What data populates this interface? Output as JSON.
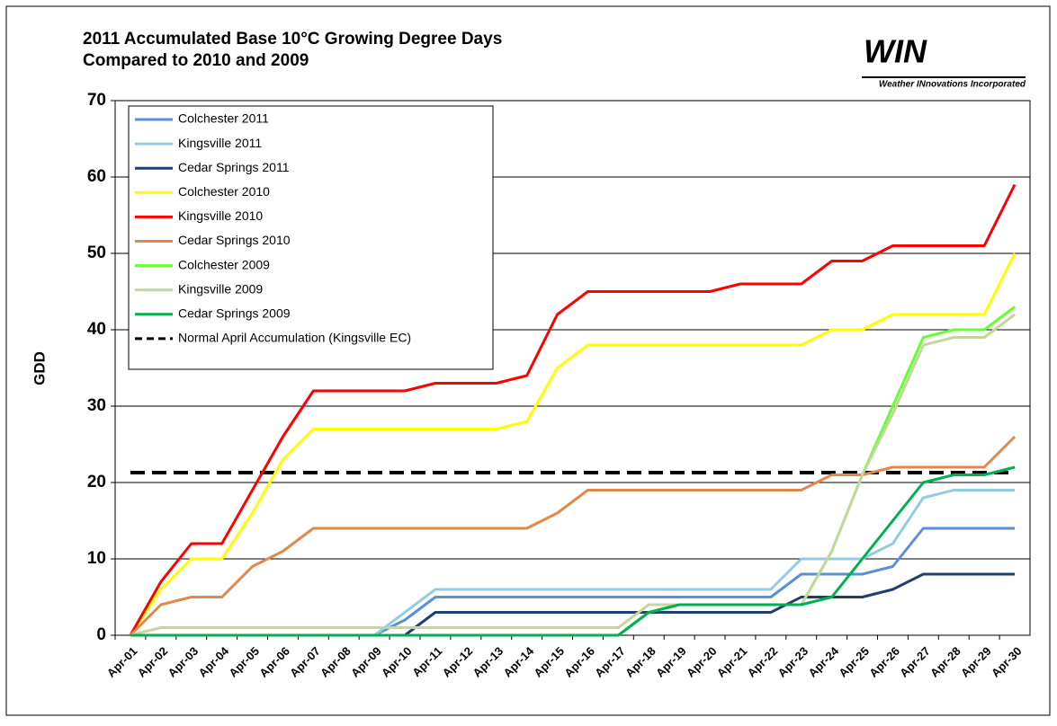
{
  "chart_data": {
    "type": "line",
    "title": "2011 Accumulated Base 10°C Growing Degree Days",
    "subtitle": "Compared to 2010 and 2009",
    "logo_text": "WIN",
    "logo_subtext": "Weather INnovations Incorporated",
    "y_label": "GDD",
    "categories": [
      "Apr-01",
      "Apr-02",
      "Apr-03",
      "Apr-04",
      "Apr-05",
      "Apr-06",
      "Apr-07",
      "Apr-08",
      "Apr-09",
      "Apr-10",
      "Apr-11",
      "Apr-12",
      "Apr-13",
      "Apr-14",
      "Apr-15",
      "Apr-16",
      "Apr-17",
      "Apr-18",
      "Apr-19",
      "Apr-20",
      "Apr-21",
      "Apr-22",
      "Apr-23",
      "Apr-24",
      "Apr-25",
      "Apr-26",
      "Apr-27",
      "Apr-28",
      "Apr-29",
      "Apr-30"
    ],
    "ylim": [
      0,
      70
    ],
    "yticks": [
      0,
      10,
      20,
      30,
      40,
      50,
      60,
      70
    ],
    "grid": true,
    "legend": "upper left",
    "series": [
      {
        "name": "Colchester 2011",
        "color": "#5b8fd6",
        "values": [
          0,
          0,
          0,
          0,
          0,
          0,
          0,
          0,
          0,
          2,
          5,
          5,
          5,
          5,
          5,
          5,
          5,
          5,
          5,
          5,
          5,
          5,
          8,
          8,
          8,
          9,
          14,
          14,
          14,
          14
        ]
      },
      {
        "name": "Kingsville 2011",
        "color": "#93cddd",
        "values": [
          0,
          0,
          0,
          0,
          0,
          0,
          0,
          0,
          0,
          3,
          6,
          6,
          6,
          6,
          6,
          6,
          6,
          6,
          6,
          6,
          6,
          6,
          10,
          10,
          10,
          12,
          18,
          19,
          19,
          19
        ]
      },
      {
        "name": "Cedar Springs 2011",
        "color": "#1f3f6e",
        "values": [
          0,
          0,
          0,
          0,
          0,
          0,
          0,
          0,
          0,
          0,
          3,
          3,
          3,
          3,
          3,
          3,
          3,
          3,
          3,
          3,
          3,
          3,
          5,
          5,
          5,
          6,
          8,
          8,
          8,
          8
        ]
      },
      {
        "name": "Colchester 2010",
        "color": "#ffff00",
        "values": [
          0,
          6,
          10,
          10,
          16,
          23,
          27,
          27,
          27,
          27,
          27,
          27,
          27,
          28,
          35,
          38,
          38,
          38,
          38,
          38,
          38,
          38,
          38,
          40,
          40,
          42,
          42,
          42,
          42,
          50
        ]
      },
      {
        "name": "Kingsville 2010",
        "color": "#ff0000",
        "values": [
          0,
          7,
          12,
          12,
          19,
          26,
          32,
          32,
          32,
          32,
          33,
          33,
          33,
          34,
          42,
          45,
          45,
          45,
          45,
          45,
          46,
          46,
          46,
          49,
          49,
          51,
          51,
          51,
          51,
          59
        ]
      },
      {
        "name": "Cedar Springs 2010",
        "color": "#e0894b",
        "values": [
          0,
          4,
          5,
          5,
          9,
          11,
          14,
          14,
          14,
          14,
          14,
          14,
          14,
          14,
          16,
          19,
          19,
          19,
          19,
          19,
          19,
          19,
          19,
          21,
          21,
          22,
          22,
          22,
          22,
          26
        ]
      },
      {
        "name": "Colchester 2009",
        "color": "#66ff33",
        "values": [
          0,
          0,
          0,
          0,
          0,
          0,
          0,
          0,
          0,
          0,
          0,
          0,
          0,
          0,
          0,
          0,
          0,
          3,
          4,
          4,
          4,
          4,
          4,
          11,
          21,
          30,
          39,
          40,
          40,
          43
        ]
      },
      {
        "name": "Kingsville 2009",
        "color": "#c4d79b",
        "values": [
          0,
          1,
          1,
          1,
          1,
          1,
          1,
          1,
          1,
          1,
          1,
          1,
          1,
          1,
          1,
          1,
          1,
          4,
          4,
          4,
          4,
          4,
          4,
          11,
          21,
          29,
          38,
          39,
          39,
          42
        ]
      },
      {
        "name": "Cedar Springs 2009",
        "color": "#00b050",
        "values": [
          0,
          0,
          0,
          0,
          0,
          0,
          0,
          0,
          0,
          0,
          0,
          0,
          0,
          0,
          0,
          0,
          0,
          3,
          4,
          4,
          4,
          4,
          4,
          5,
          10,
          15,
          20,
          21,
          21,
          22
        ]
      }
    ],
    "reference": {
      "name": "Normal April Accumulation (Kingsville EC)",
      "color": "#000000",
      "value": 21.3
    }
  }
}
